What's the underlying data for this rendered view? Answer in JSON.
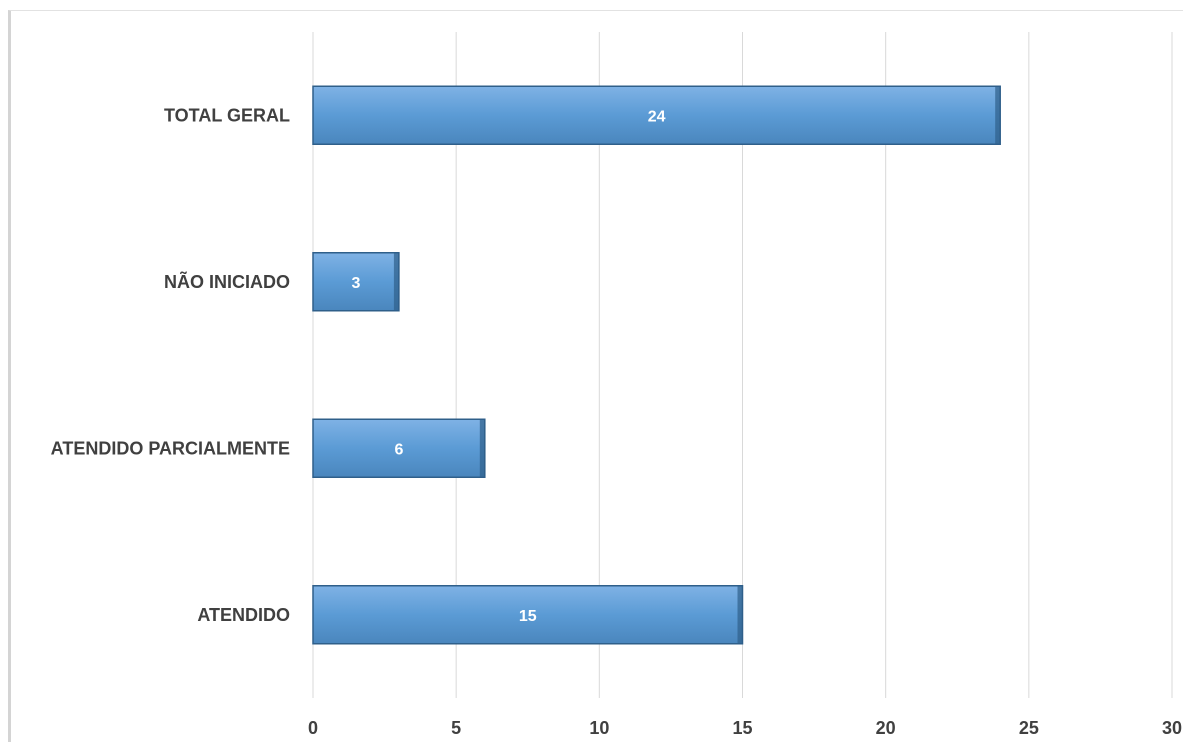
{
  "chart_data": {
    "type": "bar",
    "orientation": "horizontal",
    "categories": [
      "TOTAL GERAL",
      "NÃO INICIADO",
      "ATENDIDO PARCIALMENTE",
      "ATENDIDO"
    ],
    "values": [
      24,
      3,
      6,
      15
    ],
    "xlim": [
      0,
      30
    ],
    "xticks": [
      0,
      5,
      10,
      15,
      20,
      25,
      30
    ],
    "grid": "vertical",
    "legend": "none",
    "bar_color": "#5b9bd5",
    "bar_edge_color": "#2f5f8a"
  }
}
